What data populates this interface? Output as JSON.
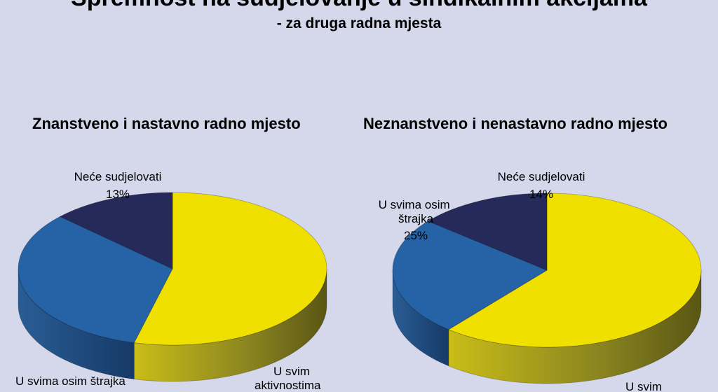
{
  "title": "Spremnost na sudjelovanje u sindikalnim akcijama",
  "subtitle": "- za druga radna mjesta",
  "colors": {
    "background": "#d4d8ea",
    "sve_aktivnosti": "#f0e000",
    "osim_strajka": "#2563a6",
    "nece": "#252a5a"
  },
  "chart_data": [
    {
      "type": "pie",
      "title": "Znanstveno i nastavno radno mjesto",
      "slices": [
        {
          "label": "U svim aktivnostima",
          "value": 54,
          "value_label": "",
          "color": "#f0e000"
        },
        {
          "label": "U svima osim štrajka",
          "value": 33,
          "value_label": "",
          "color": "#2563a6"
        },
        {
          "label": "Neće sudjelovati",
          "value": 13,
          "value_label": "13%",
          "color": "#252a5a"
        }
      ]
    },
    {
      "type": "pie",
      "title": "Neznanstveno i nenastavno radno mjesto",
      "slices": [
        {
          "label": "U svim aktivnostima",
          "value": 61,
          "value_label": "",
          "color": "#f0e000"
        },
        {
          "label": "U svima osim štrajka",
          "value": 25,
          "value_label": "25%",
          "color": "#2563a6"
        },
        {
          "label": "Neće sudjelovati",
          "value": 14,
          "value_label": "14%",
          "color": "#252a5a"
        }
      ]
    }
  ]
}
